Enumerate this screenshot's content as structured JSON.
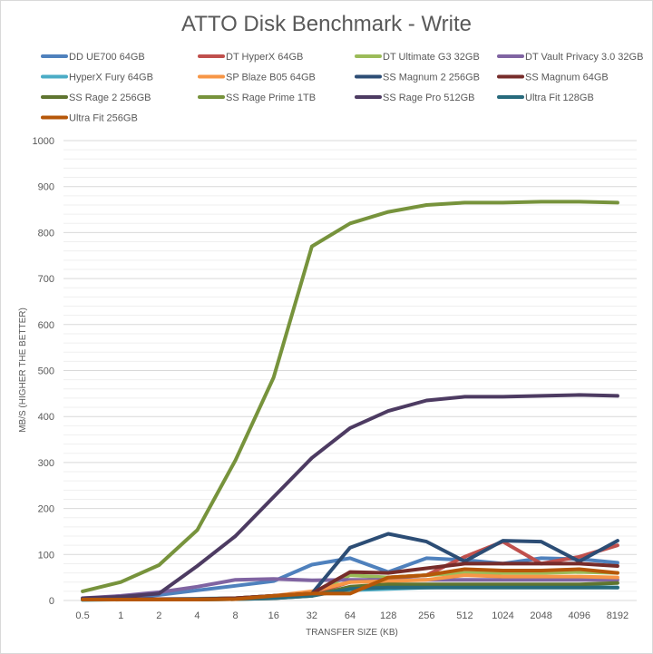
{
  "chart_data": {
    "type": "line",
    "title": "ATTO Disk Benchmark - Write",
    "xlabel": "TRANSFER SIZE (KB)",
    "ylabel": "MB/S (HIGHER THE BETTER)",
    "ylim": [
      0,
      1000
    ],
    "yticks": [
      0,
      100,
      200,
      300,
      400,
      500,
      600,
      700,
      800,
      900,
      1000
    ],
    "grid": true,
    "legend_position": "top",
    "categories": [
      "0.5",
      "1",
      "2",
      "4",
      "8",
      "16",
      "32",
      "64",
      "128",
      "256",
      "512",
      "1024",
      "2048",
      "4096",
      "8192"
    ],
    "series": [
      {
        "name": "DD UE700 64GB",
        "color": "#4f81bd",
        "values": [
          3,
          5,
          12,
          22,
          32,
          42,
          78,
          92,
          62,
          92,
          88,
          80,
          92,
          90,
          82
        ]
      },
      {
        "name": "DT HyperX 64GB",
        "color": "#c0504d",
        "values": [
          3,
          3,
          3,
          3,
          5,
          10,
          15,
          40,
          50,
          55,
          95,
          128,
          80,
          95,
          120
        ]
      },
      {
        "name": "DT Ultimate G3 32GB",
        "color": "#9bbb59",
        "values": [
          3,
          3,
          3,
          3,
          5,
          10,
          15,
          55,
          50,
          55,
          60,
          60,
          60,
          62,
          60
        ]
      },
      {
        "name": "DT Vault Privacy 3.0 32GB",
        "color": "#8064a2",
        "values": [
          5,
          10,
          18,
          30,
          45,
          47,
          44,
          45,
          45,
          45,
          45,
          45,
          45,
          45,
          45
        ]
      },
      {
        "name": "HyperX Fury 64GB",
        "color": "#4bacc6",
        "values": [
          1,
          2,
          3,
          4,
          5,
          8,
          12,
          22,
          25,
          28,
          30,
          30,
          30,
          30,
          28
        ]
      },
      {
        "name": "SP Blaze B05 64GB",
        "color": "#f79646",
        "values": [
          3,
          3,
          3,
          3,
          5,
          10,
          20,
          40,
          42,
          45,
          55,
          52,
          52,
          52,
          50
        ]
      },
      {
        "name": "SS Magnum 2 256GB",
        "color": "#2c4d75",
        "values": [
          3,
          3,
          3,
          3,
          5,
          10,
          15,
          115,
          145,
          128,
          85,
          130,
          128,
          85,
          130
        ]
      },
      {
        "name": "SS Magnum 64GB",
        "color": "#772c2a",
        "values": [
          3,
          3,
          3,
          3,
          5,
          10,
          15,
          62,
          60,
          70,
          80,
          80,
          80,
          80,
          75
        ]
      },
      {
        "name": "SS Rage 2 256GB",
        "color": "#5f7530",
        "values": [
          2,
          2,
          2,
          2,
          3,
          5,
          10,
          30,
          35,
          35,
          35,
          35,
          35,
          35,
          38
        ]
      },
      {
        "name": "SS Rage Prime 1TB",
        "color": "#77933c",
        "values": [
          20,
          40,
          77,
          153,
          305,
          485,
          770,
          820,
          845,
          860,
          865,
          865,
          867,
          867,
          865
        ]
      },
      {
        "name": "SS Rage Pro 512GB",
        "color": "#4d3b62",
        "values": [
          5,
          8,
          15,
          75,
          140,
          225,
          310,
          375,
          412,
          435,
          443,
          443,
          445,
          447,
          445
        ]
      },
      {
        "name": "Ultra Fit 128GB",
        "color": "#276a7c",
        "values": [
          2,
          2,
          2,
          2,
          3,
          5,
          10,
          25,
          28,
          28,
          28,
          28,
          28,
          28,
          28
        ]
      },
      {
        "name": "Ultra Fit 256GB",
        "color": "#b65708",
        "values": [
          2,
          2,
          2,
          2,
          3,
          10,
          15,
          15,
          50,
          55,
          68,
          65,
          65,
          68,
          60
        ]
      }
    ]
  }
}
